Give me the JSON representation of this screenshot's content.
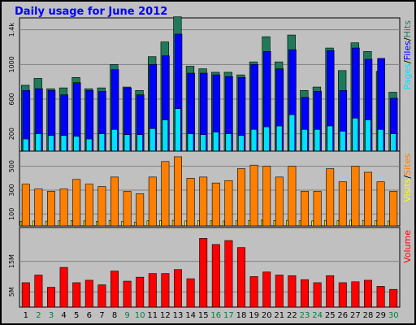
{
  "title": "Daily usage for June 2012",
  "colors": {
    "background": "#c0c0c0",
    "plot": "#c0c0c0",
    "hits": "#1f7a5a",
    "files": "#0000ff",
    "pages": "#00e0ff",
    "visits": "#ffff00",
    "sites": "#ff8000",
    "volume": "#ff0000",
    "title": "#0000ff",
    "weekend": "#008040"
  },
  "chart_data": [
    {
      "type": "bar",
      "legend": [
        "Pages",
        "Files",
        "Hits"
      ],
      "legend_separator": "/",
      "yticks": [
        "200",
        "600",
        "1000",
        "1.4k"
      ],
      "ytick_values": [
        200,
        600,
        1000,
        1400
      ],
      "ylim": [
        0,
        1500
      ],
      "categories": [
        "1",
        "2",
        "3",
        "4",
        "5",
        "6",
        "7",
        "8",
        "9",
        "10",
        "11",
        "12",
        "13",
        "14",
        "15",
        "16",
        "17",
        "18",
        "19",
        "20",
        "21",
        "22",
        "23",
        "24",
        "25",
        "26",
        "27",
        "28",
        "29",
        "30"
      ],
      "series": [
        {
          "name": "Hits",
          "values": [
            760,
            840,
            720,
            730,
            850,
            720,
            730,
            1000,
            740,
            700,
            1090,
            1260,
            1550,
            980,
            950,
            910,
            910,
            880,
            1030,
            1320,
            1030,
            1340,
            700,
            740,
            1190,
            930,
            1250,
            1150,
            920,
            680
          ]
        },
        {
          "name": "Files",
          "values": [
            700,
            720,
            700,
            650,
            790,
            700,
            690,
            940,
            730,
            650,
            1000,
            1100,
            1350,
            900,
            900,
            880,
            860,
            850,
            1000,
            1150,
            950,
            1170,
            620,
            690,
            1160,
            700,
            1190,
            1060,
            1070,
            610
          ]
        },
        {
          "name": "Pages",
          "values": [
            140,
            200,
            180,
            180,
            170,
            140,
            200,
            250,
            190,
            190,
            260,
            360,
            490,
            200,
            190,
            220,
            200,
            180,
            250,
            280,
            290,
            420,
            250,
            250,
            290,
            230,
            380,
            360,
            250,
            200
          ]
        }
      ]
    },
    {
      "type": "bar",
      "legend": [
        "Visits",
        "Sites"
      ],
      "legend_separator": "/",
      "yticks": [
        "100",
        "300",
        "500"
      ],
      "ytick_values": [
        100,
        300,
        500
      ],
      "ylim": [
        0,
        600
      ],
      "categories": [
        "1",
        "2",
        "3",
        "4",
        "5",
        "6",
        "7",
        "8",
        "9",
        "10",
        "11",
        "12",
        "13",
        "14",
        "15",
        "16",
        "17",
        "18",
        "19",
        "20",
        "21",
        "22",
        "23",
        "24",
        "25",
        "26",
        "27",
        "28",
        "29",
        "30"
      ],
      "series": [
        {
          "name": "Visits",
          "values": [
            39,
            41,
            40,
            43,
            45,
            42,
            39,
            46,
            38,
            30,
            44,
            46,
            47,
            42,
            44,
            44,
            41,
            43,
            45,
            48,
            45,
            47,
            43,
            42,
            46,
            45,
            48,
            46,
            46,
            41
          ]
        },
        {
          "name": "Sites",
          "values": [
            350,
            310,
            290,
            310,
            390,
            350,
            330,
            410,
            290,
            270,
            410,
            540,
            580,
            400,
            410,
            360,
            380,
            480,
            510,
            500,
            410,
            500,
            290,
            290,
            480,
            370,
            500,
            450,
            370,
            290
          ]
        }
      ]
    },
    {
      "type": "bar",
      "legend": [
        "Volume"
      ],
      "yticks": [
        "5M",
        "15M"
      ],
      "ytick_values": [
        5,
        15
      ],
      "ylim": [
        0,
        25
      ],
      "categories": [
        "1",
        "2",
        "3",
        "4",
        "5",
        "6",
        "7",
        "8",
        "9",
        "10",
        "11",
        "12",
        "13",
        "14",
        "15",
        "16",
        "17",
        "18",
        "19",
        "20",
        "21",
        "22",
        "23",
        "24",
        "25",
        "26",
        "27",
        "28",
        "29",
        "30"
      ],
      "series": [
        {
          "name": "Volume",
          "values": [
            8.0,
            10.5,
            6.5,
            13.0,
            8.0,
            8.8,
            7.3,
            11.8,
            8.5,
            9.8,
            11.0,
            11.0,
            12.3,
            9.3,
            22.5,
            20.5,
            21.8,
            19.5,
            10.0,
            11.5,
            10.5,
            10.3,
            9.0,
            8.0,
            10.3,
            8.0,
            8.3,
            8.8,
            6.8,
            5.8
          ]
        }
      ]
    }
  ],
  "xaxis": {
    "labels": [
      "1",
      "2",
      "3",
      "4",
      "5",
      "6",
      "7",
      "8",
      "9",
      "10",
      "11",
      "12",
      "13",
      "14",
      "15",
      "16",
      "17",
      "18",
      "19",
      "20",
      "21",
      "22",
      "23",
      "24",
      "25",
      "26",
      "27",
      "28",
      "29",
      "30"
    ],
    "weekend": [
      2,
      3,
      9,
      10,
      16,
      17,
      23,
      24,
      30
    ]
  }
}
